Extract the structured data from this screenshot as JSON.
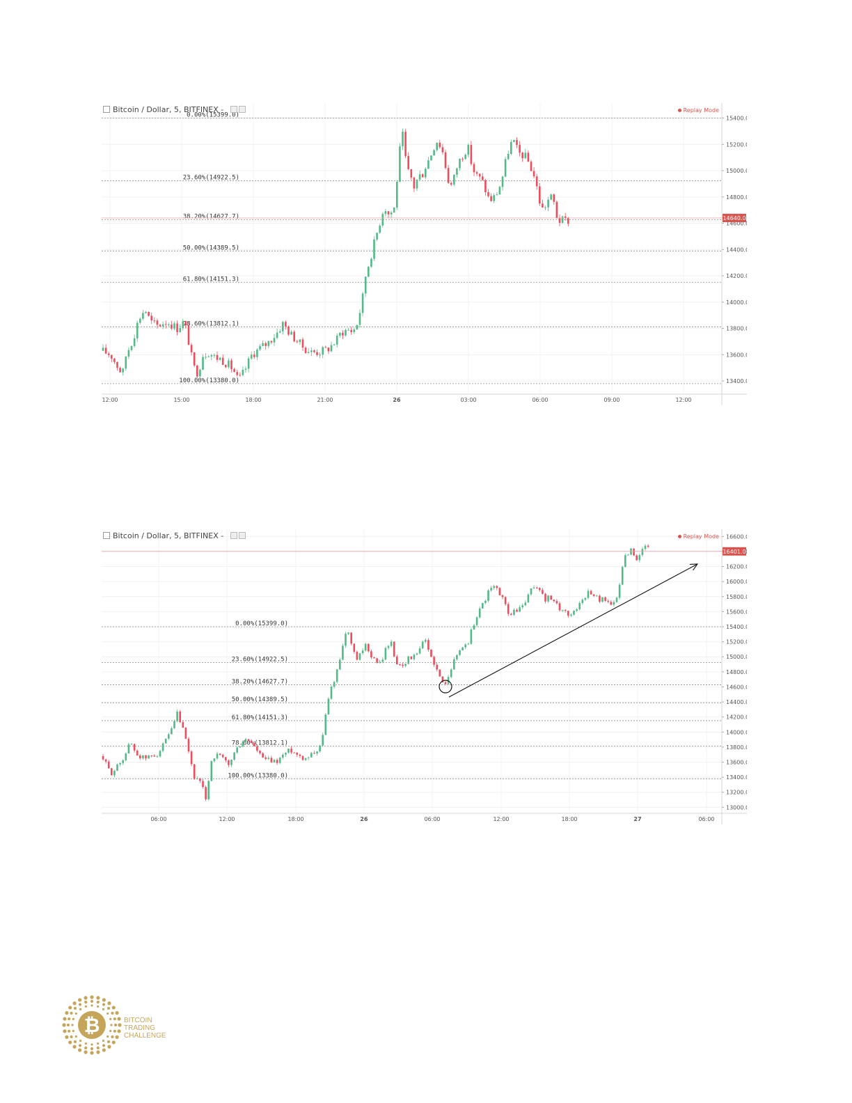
{
  "charts": [
    {
      "header": {
        "title": "Bitcoin / Dollar, 5, BITFINEX",
        "mode": "Replay Mode"
      },
      "price_label": "14640.0",
      "chart_data": {
        "type": "candlestick",
        "title": "Bitcoin / Dollar, 5, BITFINEX",
        "x_ticks": [
          "12:00",
          "15:00",
          "18:00",
          "21:00",
          "26",
          "03:00",
          "06:00",
          "09:00",
          "12:00"
        ],
        "y_ticks": [
          "15400.0",
          "15200.0",
          "15000.0",
          "14800.0",
          "14600.0",
          "14400.0",
          "14200.0",
          "14000.0",
          "13800.0",
          "13600.0",
          "13400.0"
        ],
        "ylim": [
          13300,
          15440
        ],
        "current_price": 14640.0,
        "fib_levels": [
          {
            "label": "0.00%(15399.0)",
            "value": 15399.0
          },
          {
            "label": "23.60%(14922.5)",
            "value": 14922.5
          },
          {
            "label": "38.20%(14627.7)",
            "value": 14627.7
          },
          {
            "label": "50.00%(14389.5)",
            "value": 14389.5
          },
          {
            "label": "61.80%(14151.3)",
            "value": 14151.3
          },
          {
            "label": "78.60%(13812.1)",
            "value": 13812.1
          },
          {
            "label": "100.00%(13380.0)",
            "value": 13380.0
          }
        ],
        "price_path": [
          [
            0,
            13630
          ],
          [
            1.3,
            13600
          ],
          [
            2.3,
            13510
          ],
          [
            3,
            13450
          ],
          [
            3.5,
            13600
          ],
          [
            4.5,
            13720
          ],
          [
            5.3,
            13870
          ],
          [
            6.2,
            13950
          ],
          [
            7,
            13850
          ],
          [
            8,
            13820
          ],
          [
            9,
            13850
          ],
          [
            9.8,
            13840
          ],
          [
            10.8,
            13800
          ],
          [
            11.8,
            13850
          ],
          [
            12.3,
            13750
          ],
          [
            12.8,
            13600
          ],
          [
            13.5,
            13450
          ],
          [
            14,
            13500
          ],
          [
            14.5,
            13600
          ],
          [
            15.3,
            13620
          ],
          [
            16.2,
            13580
          ],
          [
            17,
            13570
          ],
          [
            18.5,
            13510
          ],
          [
            19,
            13470
          ],
          [
            19.6,
            13400
          ],
          [
            20.5,
            13480
          ],
          [
            21.5,
            13600
          ],
          [
            22.7,
            13650
          ],
          [
            23.8,
            13690
          ],
          [
            25,
            13760
          ],
          [
            25.5,
            13800
          ],
          [
            26,
            13840
          ],
          [
            27,
            13760
          ],
          [
            28.1,
            13700
          ],
          [
            29,
            13650
          ],
          [
            30,
            13620
          ],
          [
            31.1,
            13620
          ],
          [
            32.3,
            13640
          ],
          [
            33.5,
            13700
          ],
          [
            34.3,
            13770
          ],
          [
            35.2,
            13790
          ],
          [
            36,
            13780
          ],
          [
            36.5,
            13820
          ],
          [
            37.3,
            14000
          ],
          [
            37.8,
            14200
          ],
          [
            38.3,
            14300
          ],
          [
            38.8,
            14400
          ],
          [
            39.3,
            14500
          ],
          [
            39.8,
            14600
          ],
          [
            40.3,
            14700
          ],
          [
            40.8,
            14720
          ],
          [
            41.2,
            14650
          ],
          [
            41.6,
            14700
          ],
          [
            42,
            14720
          ],
          [
            42.4,
            15000
          ],
          [
            42.8,
            15200
          ],
          [
            43.2,
            15280
          ],
          [
            43.5,
            15100
          ],
          [
            43.8,
            15000
          ],
          [
            44.3,
            14950
          ],
          [
            44.8,
            14870
          ],
          [
            45.3,
            14950
          ],
          [
            46,
            14980
          ],
          [
            46.5,
            15050
          ],
          [
            47,
            15100
          ],
          [
            47.5,
            15170
          ],
          [
            48,
            15230
          ],
          [
            48.5,
            15190
          ],
          [
            49,
            15120
          ],
          [
            49.5,
            14950
          ],
          [
            50,
            14880
          ],
          [
            50.5,
            14950
          ],
          [
            51,
            15050
          ],
          [
            51.5,
            15100
          ],
          [
            52,
            15150
          ],
          [
            52.5,
            15170
          ],
          [
            53,
            15050
          ],
          [
            53.5,
            14970
          ],
          [
            54,
            14950
          ],
          [
            54.5,
            14920
          ],
          [
            55,
            14850
          ],
          [
            55.5,
            14780
          ],
          [
            56,
            14780
          ],
          [
            56.5,
            14820
          ],
          [
            57,
            14880
          ],
          [
            57.5,
            14970
          ],
          [
            58,
            15100
          ],
          [
            58.5,
            15200
          ],
          [
            59,
            15220
          ],
          [
            59.5,
            15160
          ],
          [
            60,
            15120
          ],
          [
            60.5,
            15120
          ],
          [
            61,
            15080
          ],
          [
            61.5,
            15020
          ],
          [
            62,
            14950
          ],
          [
            62.5,
            14830
          ],
          [
            63,
            14700
          ],
          [
            63.5,
            14730
          ],
          [
            64,
            14780
          ],
          [
            64.5,
            14800
          ],
          [
            65,
            14720
          ],
          [
            65.3,
            14620
          ]
        ]
      }
    },
    {
      "header": {
        "title": "Bitcoin / Dollar, 5, BITFINEX",
        "mode": "Replay Mode"
      },
      "price_label": "16401.0",
      "chart_data": {
        "type": "candlestick",
        "title": "Bitcoin / Dollar, 5, BITFINEX",
        "x_ticks": [
          "06:00",
          "12:00",
          "18:00",
          "26",
          "06:00",
          "12:00",
          "18:00",
          "27",
          "06:00"
        ],
        "y_ticks": [
          "16600.0",
          "16400.0",
          "16200.0",
          "16000.0",
          "15800.0",
          "15600.0",
          "15400.0",
          "15200.0",
          "15000.0",
          "14800.0",
          "14600.0",
          "14400.0",
          "14200.0",
          "14000.0",
          "13800.0",
          "13600.0",
          "13400.0",
          "13200.0",
          "13000.0"
        ],
        "ylim": [
          12920,
          16640
        ],
        "current_price": 16401.0,
        "fib_levels": [
          {
            "label": "0.00%(15399.0)",
            "value": 15399.0
          },
          {
            "label": "23.60%(14922.5)",
            "value": 14922.5
          },
          {
            "label": "38.20%(14627.7)",
            "value": 14627.7
          },
          {
            "label": "50.00%(14389.5)",
            "value": 14389.5
          },
          {
            "label": "61.80%(14151.3)",
            "value": 14151.3
          },
          {
            "label": "78.60%(13812.1)",
            "value": 13812.1
          },
          {
            "label": "100.00%(13380.0)",
            "value": 13380.0
          }
        ],
        "price_path": [
          [
            0,
            13680
          ],
          [
            1.3,
            13450
          ],
          [
            2.3,
            13550
          ],
          [
            3.3,
            13700
          ],
          [
            4,
            13870
          ],
          [
            5,
            13700
          ],
          [
            6,
            13650
          ],
          [
            7,
            13680
          ],
          [
            8,
            13720
          ],
          [
            9,
            13880
          ],
          [
            10,
            14050
          ],
          [
            10.6,
            14250
          ],
          [
            11.5,
            14000
          ],
          [
            12.3,
            13700
          ],
          [
            13,
            13400
          ],
          [
            14,
            13300
          ],
          [
            14.7,
            13100
          ],
          [
            15.3,
            13600
          ],
          [
            16,
            13700
          ],
          [
            17,
            13650
          ],
          [
            17.8,
            13550
          ],
          [
            18.5,
            13700
          ],
          [
            19.2,
            13800
          ],
          [
            20,
            13900
          ],
          [
            21,
            13870
          ],
          [
            21.8,
            13750
          ],
          [
            22.6,
            13650
          ],
          [
            23.5,
            13620
          ],
          [
            24.5,
            13600
          ],
          [
            25.5,
            13700
          ],
          [
            26.5,
            13770
          ],
          [
            27.5,
            13700
          ],
          [
            28.5,
            13650
          ],
          [
            29.5,
            13720
          ],
          [
            30.3,
            13760
          ],
          [
            31,
            13900
          ],
          [
            31.5,
            14300
          ],
          [
            32.3,
            14600
          ],
          [
            33,
            14800
          ],
          [
            33.5,
            15000
          ],
          [
            34,
            15250
          ],
          [
            34.6,
            15350
          ],
          [
            35.2,
            15100
          ],
          [
            35.8,
            14950
          ],
          [
            36.5,
            15050
          ],
          [
            37.1,
            15150
          ],
          [
            38,
            15000
          ],
          [
            38.7,
            14900
          ],
          [
            39.5,
            14980
          ],
          [
            40,
            15150
          ],
          [
            40.6,
            15200
          ],
          [
            41.2,
            14950
          ],
          [
            41.8,
            14880
          ],
          [
            42.5,
            14920
          ],
          [
            43.3,
            15000
          ],
          [
            44.2,
            15000
          ],
          [
            44.8,
            15150
          ],
          [
            45.5,
            15200
          ],
          [
            46,
            15050
          ],
          [
            46.8,
            14900
          ],
          [
            47.3,
            14750
          ],
          [
            47.7,
            14680
          ],
          [
            48,
            14620
          ],
          [
            48.4,
            14700
          ],
          [
            48.9,
            14820
          ],
          [
            49.5,
            14950
          ],
          [
            50,
            15050
          ],
          [
            50.8,
            15150
          ],
          [
            51.5,
            15200
          ],
          [
            52,
            15380
          ],
          [
            52.5,
            15500
          ],
          [
            53,
            15620
          ],
          [
            53.5,
            15700
          ],
          [
            54,
            15800
          ],
          [
            54.5,
            15900
          ],
          [
            55.2,
            15920
          ],
          [
            55.9,
            15850
          ],
          [
            56.6,
            15700
          ],
          [
            57.3,
            15550
          ],
          [
            58,
            15600
          ],
          [
            58.7,
            15650
          ],
          [
            59.4,
            15700
          ],
          [
            60.1,
            15850
          ],
          [
            60.8,
            15950
          ],
          [
            61.5,
            15900
          ],
          [
            62.2,
            15750
          ],
          [
            62.9,
            15800
          ],
          [
            63.6,
            15700
          ],
          [
            64.3,
            15650
          ],
          [
            65,
            15600
          ],
          [
            65.7,
            15550
          ],
          [
            66.4,
            15620
          ],
          [
            67.1,
            15700
          ],
          [
            67.8,
            15800
          ],
          [
            68.5,
            15880
          ],
          [
            69.2,
            15820
          ],
          [
            69.9,
            15750
          ],
          [
            70.6,
            15780
          ],
          [
            71.3,
            15720
          ],
          [
            72,
            15700
          ],
          [
            72.5,
            15800
          ],
          [
            72.9,
            16100
          ],
          [
            73.3,
            16300
          ],
          [
            73.8,
            16380
          ],
          [
            74.4,
            16420
          ],
          [
            75,
            16300
          ],
          [
            75.5,
            16350
          ],
          [
            76.3,
            16450
          ]
        ]
      }
    }
  ],
  "logo": {
    "line1": "BITCOIN",
    "line2": "TRADING",
    "line3": "CHALLENGE",
    "color": "#c5a55a"
  },
  "colors": {
    "up": "#53b987",
    "down": "#eb4d5c",
    "price_tag": "#d9534f"
  }
}
